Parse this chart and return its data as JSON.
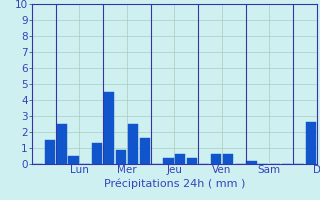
{
  "xlabel": "Précipitations 24h ( mm )",
  "background_color": "#cff0f0",
  "bar_color": "#1155cc",
  "grid_color": "#aaccbb",
  "sep_color": "#3333aa",
  "ylim": [
    0,
    10
  ],
  "yticks": [
    0,
    1,
    2,
    3,
    4,
    5,
    6,
    7,
    8,
    9,
    10
  ],
  "day_labels": [
    "Lun",
    "Mer",
    "Jeu",
    "Ven",
    "Sam",
    "D"
  ],
  "day_positions": [
    3.5,
    7.5,
    11.5,
    15.5,
    19.5,
    23.5
  ],
  "day_sep_positions": [
    1.5,
    5.5,
    9.5,
    13.5,
    17.5,
    21.5
  ],
  "bar_values": [
    0.0,
    1.5,
    2.5,
    0.5,
    0.0,
    1.3,
    4.5,
    0.9,
    2.5,
    1.6,
    0.0,
    0.4,
    0.6,
    0.4,
    0.0,
    0.6,
    0.6,
    0.0,
    0.2,
    0.0,
    0.0,
    0.0,
    0.0,
    2.6
  ],
  "num_bars": 24,
  "text_color": "#3344bb",
  "xlabel_fontsize": 8,
  "tick_fontsize": 7.5,
  "bar_width": 0.85
}
